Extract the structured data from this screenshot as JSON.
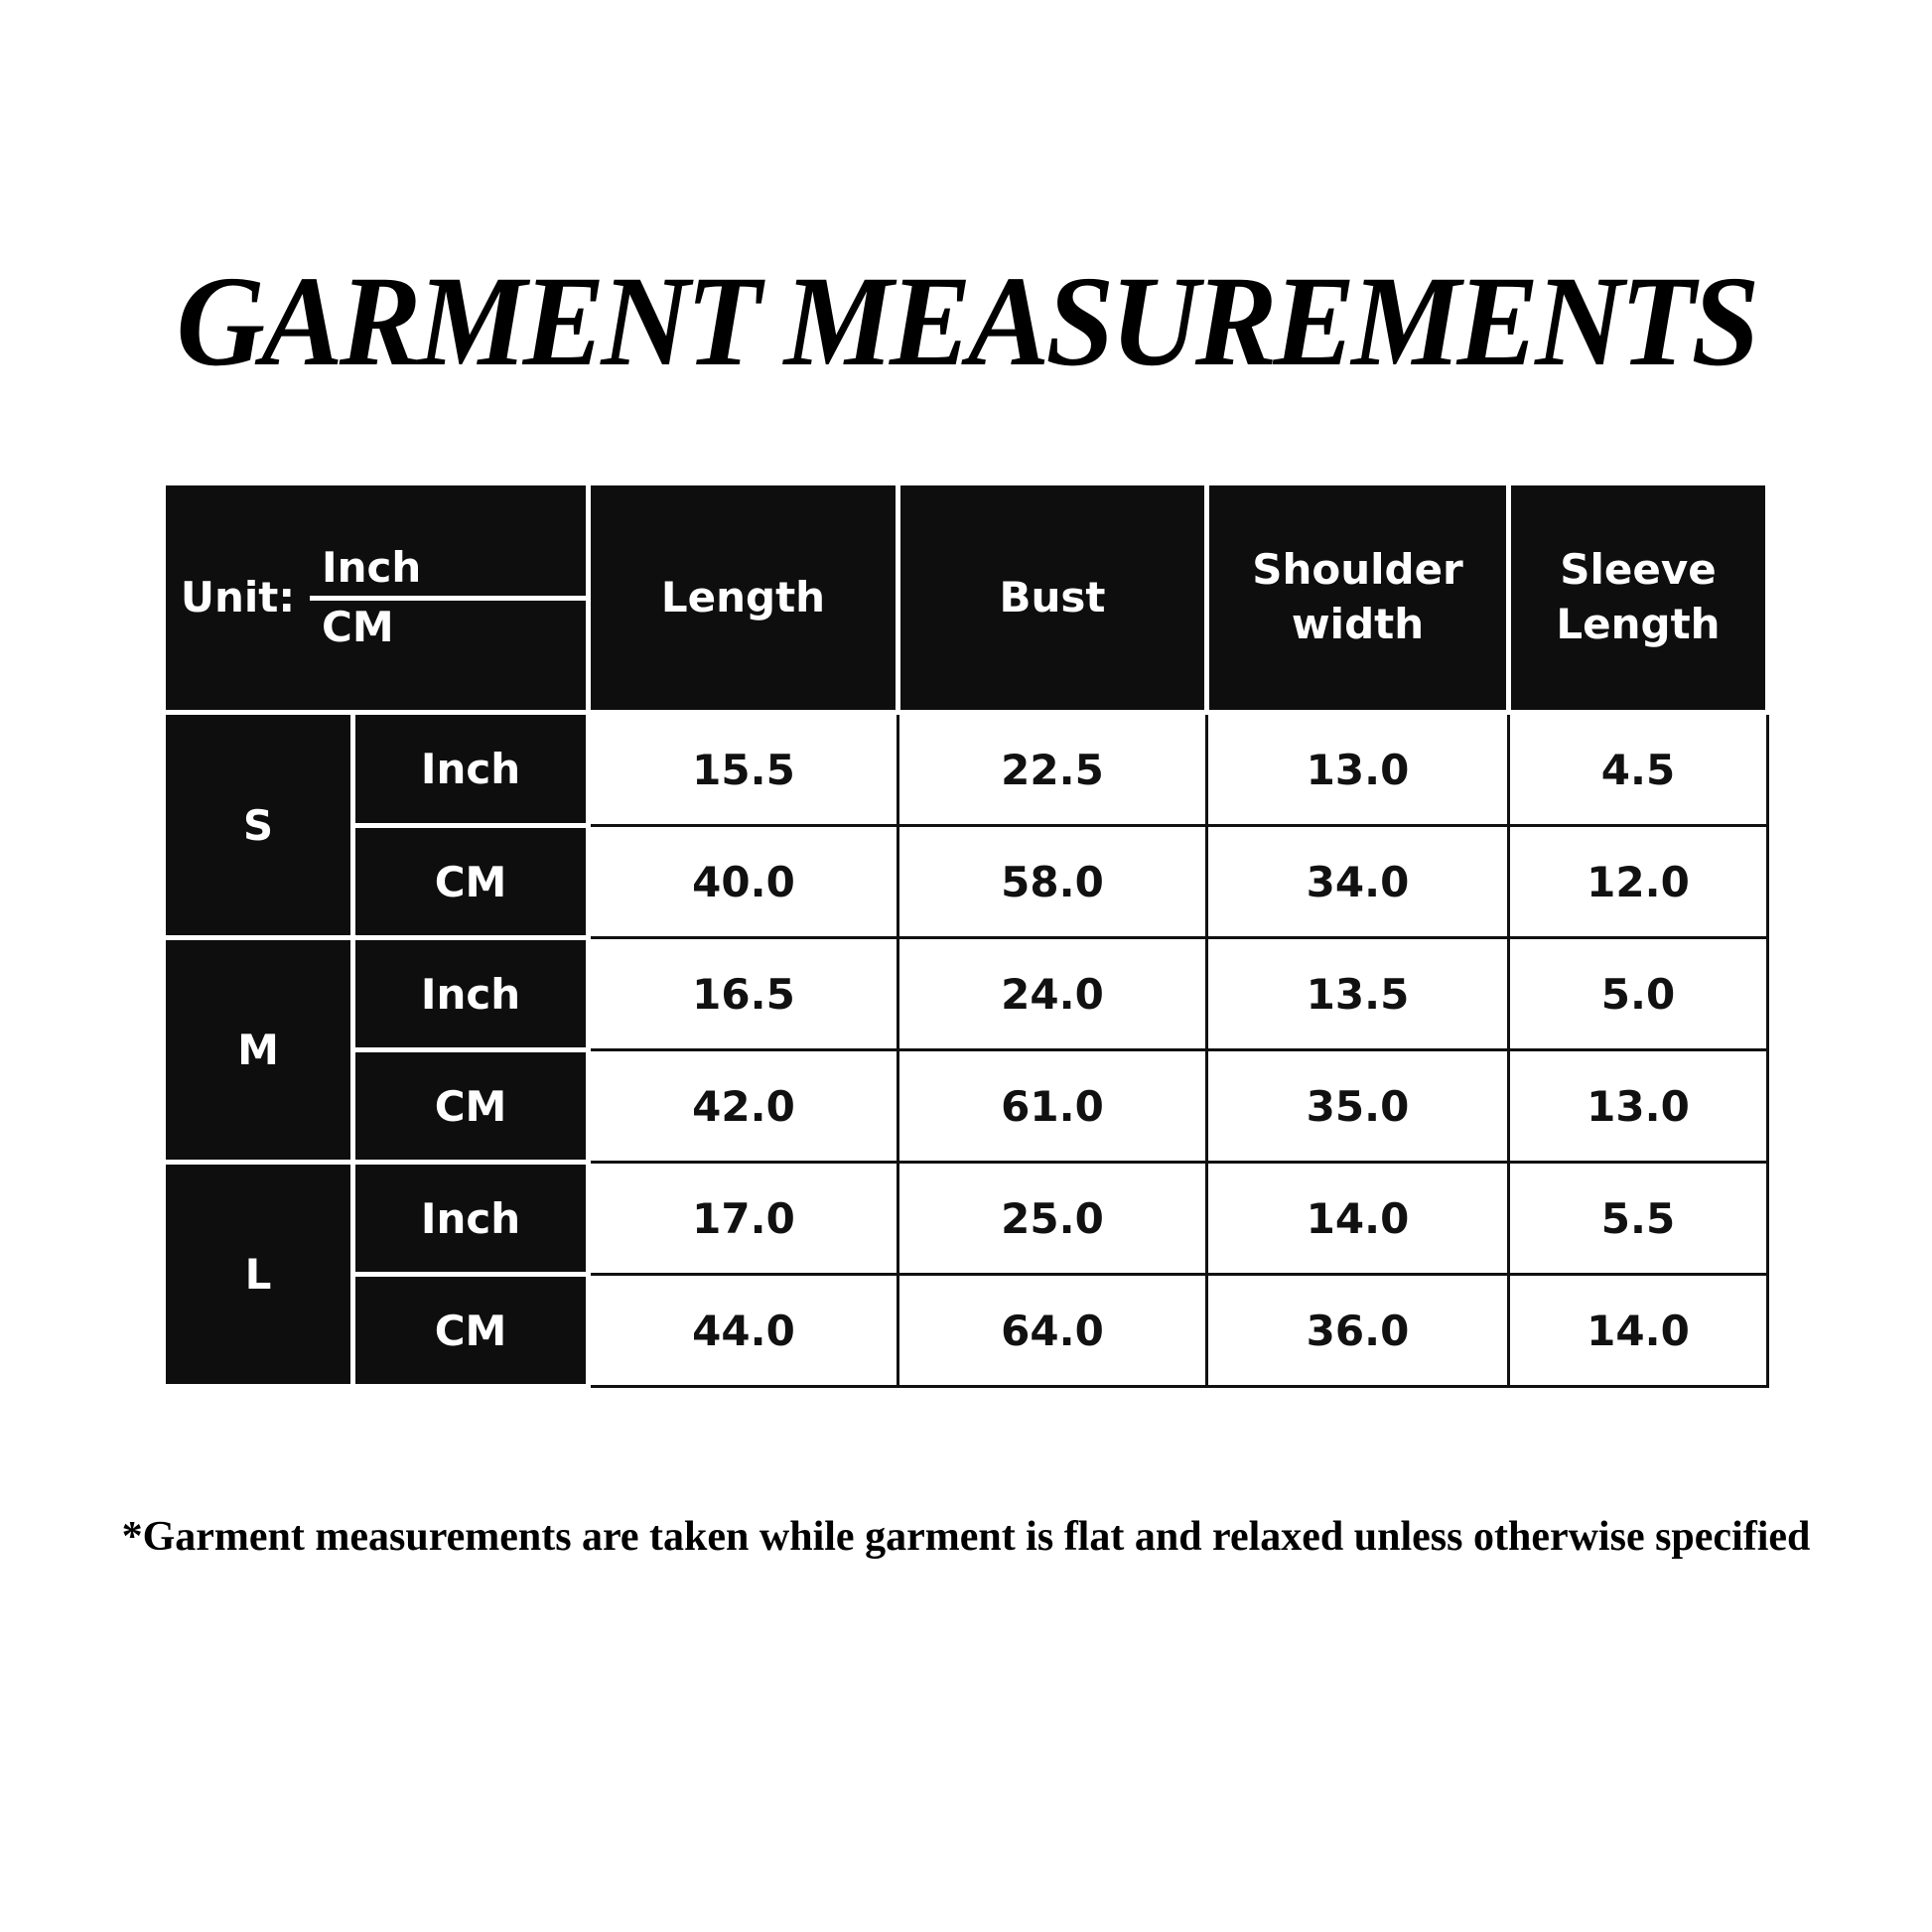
{
  "title": "GARMENT MEASUREMENTS",
  "table": {
    "unit_label": "Unit:",
    "unit_top": "Inch",
    "unit_bottom": "CM",
    "columns": [
      "Length",
      "Bust",
      "Shoulder width",
      "Sleeve Length"
    ],
    "sizes": [
      {
        "size": "S",
        "rows": [
          {
            "unit": "Inch",
            "values": [
              "15.5",
              "22.5",
              "13.0",
              "4.5"
            ]
          },
          {
            "unit": "CM",
            "values": [
              "40.0",
              "58.0",
              "34.0",
              "12.0"
            ]
          }
        ]
      },
      {
        "size": "M",
        "rows": [
          {
            "unit": "Inch",
            "values": [
              "16.5",
              "24.0",
              "13.5",
              "5.0"
            ]
          },
          {
            "unit": "CM",
            "values": [
              "42.0",
              "61.0",
              "35.0",
              "13.0"
            ]
          }
        ]
      },
      {
        "size": "L",
        "rows": [
          {
            "unit": "Inch",
            "values": [
              "17.0",
              "25.0",
              "14.0",
              "5.5"
            ]
          },
          {
            "unit": "CM",
            "values": [
              "44.0",
              "64.0",
              "36.0",
              "14.0"
            ]
          }
        ]
      }
    ]
  },
  "footnote": "*Garment measurements are taken while garment is flat and relaxed unless otherwise specified"
}
